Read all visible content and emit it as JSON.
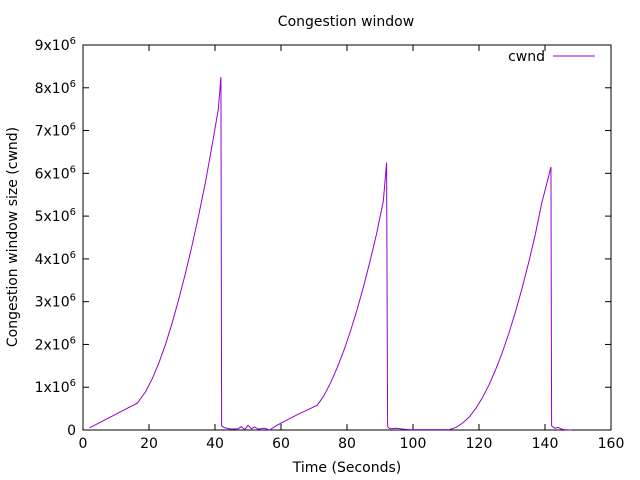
{
  "chart_data": {
    "type": "line",
    "title": "Congestion window",
    "xlabel": "Time (Seconds)",
    "ylabel": "Congestion window size (cwnd)",
    "xlim": [
      0,
      160
    ],
    "ylim": [
      0,
      9000000
    ],
    "x_ticks": [
      0,
      20,
      40,
      60,
      80,
      100,
      120,
      140,
      160
    ],
    "x_tick_labels": [
      "0",
      "20",
      "40",
      "60",
      "80",
      "100",
      "120",
      "140",
      "160"
    ],
    "y_ticks": [
      0,
      1000000,
      2000000,
      3000000,
      4000000,
      5000000,
      6000000,
      7000000,
      8000000,
      9000000
    ],
    "y_tick_labels": [
      {
        "base": "0",
        "exp": ""
      },
      {
        "base": "1x10",
        "exp": "6"
      },
      {
        "base": "2x10",
        "exp": "6"
      },
      {
        "base": "3x10",
        "exp": "6"
      },
      {
        "base": "4x10",
        "exp": "6"
      },
      {
        "base": "5x10",
        "exp": "6"
      },
      {
        "base": "6x10",
        "exp": "6"
      },
      {
        "base": "7x10",
        "exp": "6"
      },
      {
        "base": "8x10",
        "exp": "6"
      },
      {
        "base": "9x10",
        "exp": "6"
      }
    ],
    "grid": false,
    "legend_position": "top-right",
    "series": [
      {
        "name": "cwnd",
        "color": "#9400d3",
        "points": [
          [
            2,
            50000
          ],
          [
            5,
            170000
          ],
          [
            8,
            290000
          ],
          [
            11,
            410000
          ],
          [
            14,
            530000
          ],
          [
            16.5,
            630000
          ],
          [
            19,
            900000
          ],
          [
            21,
            1200000
          ],
          [
            23,
            1570000
          ],
          [
            25,
            2000000
          ],
          [
            27,
            2500000
          ],
          [
            29,
            3050000
          ],
          [
            31,
            3650000
          ],
          [
            33,
            4300000
          ],
          [
            35,
            5000000
          ],
          [
            37,
            5750000
          ],
          [
            39,
            6600000
          ],
          [
            41,
            7500000
          ],
          [
            41.8,
            8250000
          ],
          [
            42,
            100000
          ],
          [
            43,
            50000
          ],
          [
            45,
            20000
          ],
          [
            47,
            30000
          ],
          [
            48,
            80000
          ],
          [
            49,
            10000
          ],
          [
            50,
            110000
          ],
          [
            51,
            30000
          ],
          [
            52,
            70000
          ],
          [
            53,
            20000
          ],
          [
            55,
            40000
          ],
          [
            56.5,
            0
          ],
          [
            59,
            120000
          ],
          [
            62,
            240000
          ],
          [
            65,
            360000
          ],
          [
            68,
            470000
          ],
          [
            71,
            580000
          ],
          [
            73,
            800000
          ],
          [
            75,
            1100000
          ],
          [
            77,
            1450000
          ],
          [
            79,
            1850000
          ],
          [
            81,
            2300000
          ],
          [
            83,
            2800000
          ],
          [
            85,
            3350000
          ],
          [
            87,
            3950000
          ],
          [
            89,
            4600000
          ],
          [
            91,
            5350000
          ],
          [
            92,
            6250000
          ],
          [
            92.3,
            80000
          ],
          [
            93,
            30000
          ],
          [
            95,
            40000
          ],
          [
            97,
            20000
          ],
          [
            99,
            10000
          ],
          [
            111,
            10000
          ],
          [
            113,
            60000
          ],
          [
            115,
            160000
          ],
          [
            117,
            300000
          ],
          [
            119,
            500000
          ],
          [
            121,
            750000
          ],
          [
            123,
            1050000
          ],
          [
            125,
            1400000
          ],
          [
            127,
            1800000
          ],
          [
            129,
            2250000
          ],
          [
            131,
            2750000
          ],
          [
            133,
            3300000
          ],
          [
            135,
            3900000
          ],
          [
            137,
            4550000
          ],
          [
            139,
            5300000
          ],
          [
            141,
            5900000
          ],
          [
            141.8,
            6150000
          ],
          [
            142,
            100000
          ],
          [
            143,
            40000
          ],
          [
            144,
            60000
          ],
          [
            145,
            20000
          ],
          [
            146,
            10000
          ],
          [
            148,
            0
          ]
        ]
      }
    ]
  }
}
